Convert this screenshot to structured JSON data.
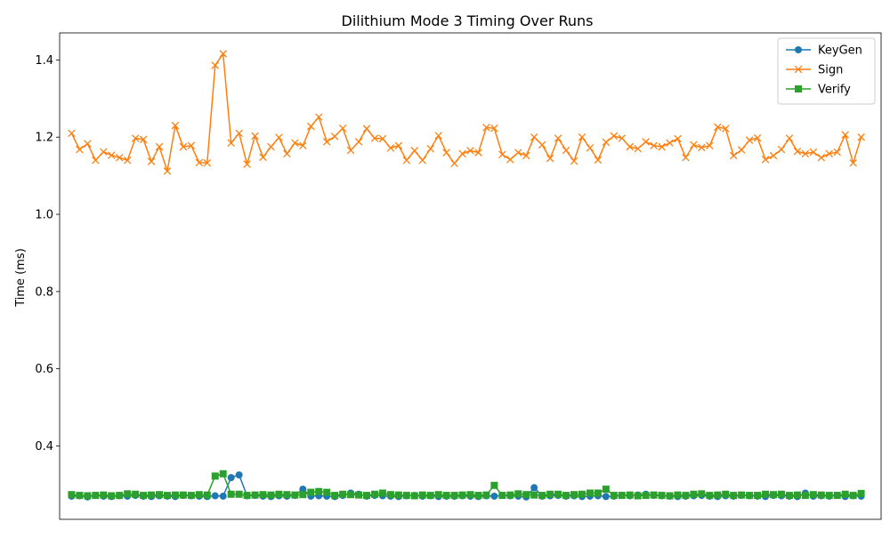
{
  "chart_data": {
    "type": "line",
    "title": "Dilithium Mode 3 Timing Over Runs",
    "xlabel": "",
    "ylabel": "Time (ms)",
    "ylim": [
      0.21,
      1.47
    ],
    "yticks": [
      0.4,
      0.6,
      0.8,
      1.0,
      1.2,
      1.4
    ],
    "ytick_labels": [
      "0.4",
      "0.6",
      "0.8",
      "1.0",
      "1.2",
      "1.4"
    ],
    "xlim": [
      -1.5,
      101.5
    ],
    "xticks_visible": false,
    "grid": false,
    "legend": "top-right",
    "x": [
      0,
      1,
      2,
      3,
      4,
      5,
      6,
      7,
      8,
      9,
      10,
      11,
      12,
      13,
      14,
      15,
      16,
      17,
      18,
      19,
      20,
      21,
      22,
      23,
      24,
      25,
      26,
      27,
      28,
      29,
      30,
      31,
      32,
      33,
      34,
      35,
      36,
      37,
      38,
      39,
      40,
      41,
      42,
      43,
      44,
      45,
      46,
      47,
      48,
      49,
      50,
      51,
      52,
      53,
      54,
      55,
      56,
      57,
      58,
      59,
      60,
      61,
      62,
      63,
      64,
      65,
      66,
      67,
      68,
      69,
      70,
      71,
      72,
      73,
      74,
      75,
      76,
      77,
      78,
      79,
      80,
      81,
      82,
      83,
      84,
      85,
      86,
      87,
      88,
      89,
      90,
      91,
      92,
      93,
      94,
      95,
      96,
      97,
      98,
      99
    ],
    "series": [
      {
        "name": "KeyGen",
        "color": "#1f77b4",
        "marker": "circle",
        "values": [
          0.27,
          0.271,
          0.268,
          0.272,
          0.27,
          0.269,
          0.271,
          0.27,
          0.272,
          0.27,
          0.269,
          0.271,
          0.27,
          0.269,
          0.272,
          0.271,
          0.27,
          0.269,
          0.271,
          0.27,
          0.318,
          0.325,
          0.271,
          0.272,
          0.27,
          0.269,
          0.271,
          0.27,
          0.272,
          0.288,
          0.27,
          0.271,
          0.27,
          0.269,
          0.272,
          0.278,
          0.275,
          0.27,
          0.272,
          0.271,
          0.27,
          0.269,
          0.271,
          0.272,
          0.27,
          0.271,
          0.269,
          0.27,
          0.27,
          0.271,
          0.27,
          0.269,
          0.271,
          0.27,
          0.272,
          0.271,
          0.27,
          0.268,
          0.292,
          0.27,
          0.271,
          0.272,
          0.27,
          0.271,
          0.269,
          0.27,
          0.271,
          0.269,
          0.27,
          0.272,
          0.271,
          0.273,
          0.275,
          0.272,
          0.271,
          0.27,
          0.269,
          0.27,
          0.271,
          0.272,
          0.27,
          0.269,
          0.271,
          0.27,
          0.272,
          0.271,
          0.27,
          0.269,
          0.272,
          0.271,
          0.27,
          0.269,
          0.278,
          0.27,
          0.271,
          0.27,
          0.272,
          0.269,
          0.271,
          0.27
        ]
      },
      {
        "name": "Sign",
        "color": "#ff7f0e",
        "marker": "x",
        "values": [
          1.21,
          1.168,
          1.183,
          1.14,
          1.162,
          1.153,
          1.147,
          1.14,
          1.197,
          1.194,
          1.137,
          1.175,
          1.112,
          1.23,
          1.175,
          1.178,
          1.134,
          1.133,
          1.386,
          1.416,
          1.185,
          1.21,
          1.13,
          1.203,
          1.148,
          1.175,
          1.199,
          1.157,
          1.185,
          1.178,
          1.228,
          1.252,
          1.188,
          1.202,
          1.223,
          1.166,
          1.188,
          1.222,
          1.197,
          1.196,
          1.172,
          1.178,
          1.14,
          1.165,
          1.14,
          1.17,
          1.204,
          1.16,
          1.132,
          1.157,
          1.165,
          1.16,
          1.225,
          1.223,
          1.155,
          1.142,
          1.16,
          1.152,
          1.2,
          1.18,
          1.145,
          1.197,
          1.166,
          1.138,
          1.2,
          1.172,
          1.141,
          1.187,
          1.203,
          1.197,
          1.175,
          1.17,
          1.188,
          1.178,
          1.175,
          1.185,
          1.196,
          1.147,
          1.18,
          1.173,
          1.178,
          1.226,
          1.222,
          1.152,
          1.167,
          1.192,
          1.198,
          1.142,
          1.152,
          1.168,
          1.197,
          1.163,
          1.157,
          1.161,
          1.147,
          1.157,
          1.161,
          1.206,
          1.133,
          1.2
        ]
      },
      {
        "name": "Verify",
        "color": "#2ca02c",
        "marker": "square",
        "values": [
          0.274,
          0.272,
          0.271,
          0.272,
          0.273,
          0.271,
          0.272,
          0.276,
          0.275,
          0.272,
          0.273,
          0.274,
          0.272,
          0.273,
          0.273,
          0.272,
          0.274,
          0.273,
          0.322,
          0.328,
          0.275,
          0.275,
          0.272,
          0.273,
          0.274,
          0.273,
          0.275,
          0.274,
          0.273,
          0.274,
          0.28,
          0.282,
          0.28,
          0.272,
          0.275,
          0.274,
          0.273,
          0.272,
          0.275,
          0.278,
          0.274,
          0.273,
          0.272,
          0.271,
          0.273,
          0.272,
          0.274,
          0.272,
          0.272,
          0.273,
          0.274,
          0.272,
          0.273,
          0.298,
          0.272,
          0.273,
          0.276,
          0.274,
          0.273,
          0.272,
          0.275,
          0.275,
          0.272,
          0.274,
          0.275,
          0.278,
          0.278,
          0.288,
          0.272,
          0.272,
          0.273,
          0.271,
          0.272,
          0.273,
          0.272,
          0.271,
          0.273,
          0.272,
          0.275,
          0.276,
          0.272,
          0.273,
          0.275,
          0.272,
          0.273,
          0.272,
          0.272,
          0.275,
          0.274,
          0.275,
          0.272,
          0.273,
          0.272,
          0.274,
          0.273,
          0.272,
          0.272,
          0.275,
          0.272,
          0.277
        ]
      }
    ]
  }
}
